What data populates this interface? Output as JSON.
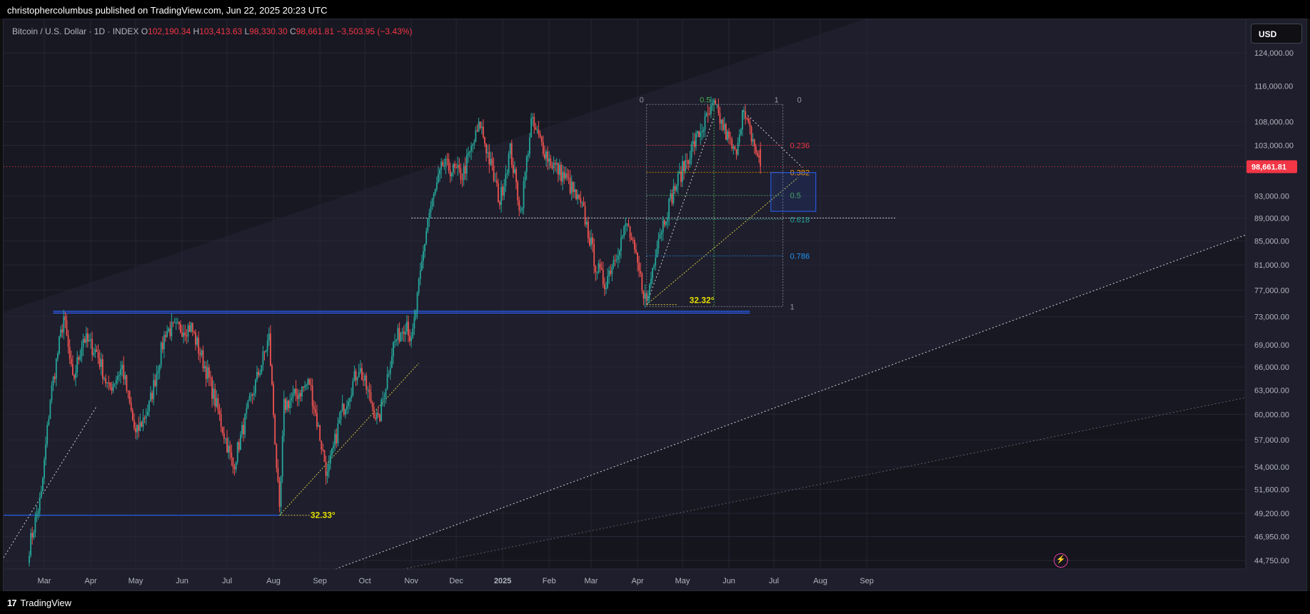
{
  "header": {
    "publisher_text": "christophercolumbus published on TradingView.com, Jun 22, 2025 20:23 UTC"
  },
  "legend": {
    "symbol": "Bitcoin / U.S. Dollar · 1D · INDEX",
    "open_label": "O",
    "open": "102,190.34",
    "high_label": "H",
    "high": "103,413.63",
    "low_label": "L",
    "low": "98,330.30",
    "close_label": "C",
    "close": "98,661.81",
    "change": "−3,503.95 (−3.43%)"
  },
  "currency_button": "USD",
  "last_price_label": "98,661.81",
  "angle_labels": [
    "32.33°",
    "32.32°"
  ],
  "footer": {
    "brand": "TradingView",
    "logo_icon": "tradingview-logo-icon"
  },
  "colors": {
    "up": "#26a69a",
    "down": "#ef5350",
    "background": "#1e1e2c",
    "blue_lines": "#2962ff",
    "fib_box": "#2962ff",
    "last_price": "#f23645"
  },
  "chart_data": {
    "type": "candlestick",
    "symbol": "Bitcoin / U.S. Dollar",
    "interval": "1D",
    "x_ticks": [
      "Mar",
      "Apr",
      "May",
      "Jun",
      "Jul",
      "Aug",
      "Sep",
      "Oct",
      "Nov",
      "Dec",
      "2025",
      "Feb",
      "Mar",
      "Apr",
      "May",
      "Jun",
      "Jul",
      "Aug",
      "Sep"
    ],
    "y_ticks": [
      "124,000.00",
      "116,000.00",
      "108,000.00",
      "103,000.00",
      "93,000.00",
      "89,000.00",
      "85,000.00",
      "81,000.00",
      "77,000.00",
      "73,000.00",
      "69,000.00",
      "66,000.00",
      "63,000.00",
      "60,000.00",
      "57,000.00",
      "54,000.00",
      "51,600.00",
      "49,200.00",
      "46,950.00",
      "44,750.00"
    ],
    "y_scale": "log",
    "ylim": [
      43500,
      130000
    ],
    "last_price": 98661.81,
    "price_path": [
      [
        "2024-02-20",
        46000
      ],
      [
        "2024-02-28",
        51000
      ],
      [
        "2024-03-05",
        62000
      ],
      [
        "2024-03-14",
        73000
      ],
      [
        "2024-03-20",
        64000
      ],
      [
        "2024-03-27",
        70000
      ],
      [
        "2024-04-05",
        68000
      ],
      [
        "2024-04-13",
        63000
      ],
      [
        "2024-04-22",
        66000
      ],
      [
        "2024-05-01",
        57500
      ],
      [
        "2024-05-10",
        61000
      ],
      [
        "2024-05-21",
        71000
      ],
      [
        "2024-06-07",
        71500
      ],
      [
        "2024-06-18",
        65000
      ],
      [
        "2024-06-24",
        61000
      ],
      [
        "2024-07-05",
        54000
      ],
      [
        "2024-07-14",
        60000
      ],
      [
        "2024-07-29",
        70000
      ],
      [
        "2024-08-05",
        49000
      ],
      [
        "2024-08-08",
        61000
      ],
      [
        "2024-08-25",
        64000
      ],
      [
        "2024-09-06",
        53000
      ],
      [
        "2024-09-15",
        60000
      ],
      [
        "2024-09-27",
        66000
      ],
      [
        "2024-10-10",
        59000
      ],
      [
        "2024-10-20",
        69000
      ],
      [
        "2024-10-29",
        72500
      ],
      [
        "2024-11-01",
        69000
      ],
      [
        "2024-11-12",
        89000
      ],
      [
        "2024-11-22",
        99000
      ],
      [
        "2024-12-05",
        97000
      ],
      [
        "2024-12-17",
        107500
      ],
      [
        "2024-12-30",
        92000
      ],
      [
        "2025-01-06",
        102000
      ],
      [
        "2025-01-13",
        90000
      ],
      [
        "2025-01-20",
        108000
      ],
      [
        "2025-02-01",
        100000
      ],
      [
        "2025-02-13",
        96000
      ],
      [
        "2025-02-24",
        90000
      ],
      [
        "2025-03-04",
        81000
      ],
      [
        "2025-03-10",
        78000
      ],
      [
        "2025-03-25",
        88000
      ],
      [
        "2025-04-07",
        75000
      ],
      [
        "2025-04-14",
        85000
      ],
      [
        "2025-04-25",
        94000
      ],
      [
        "2025-05-08",
        103000
      ],
      [
        "2025-05-22",
        111500
      ],
      [
        "2025-06-05",
        101000
      ],
      [
        "2025-06-10",
        110000
      ],
      [
        "2025-06-17",
        104000
      ],
      [
        "2025-06-22",
        98661.81
      ]
    ],
    "horizontal_levels": [
      {
        "price": 73800,
        "from": "2024-03-14",
        "to": "2025-06-15",
        "color": "blue"
      },
      {
        "price": 49000,
        "from": "2024-02-20",
        "to": "2024-08-05",
        "color": "blue"
      },
      {
        "price": 89000,
        "from": "2024-11-01",
        "to": "2025-09-20",
        "color": "white"
      }
    ],
    "fibonacci": {
      "high": 111800,
      "low": 74500,
      "levels": [
        {
          "ratio": "0.236",
          "color": "#f23645"
        },
        {
          "ratio": "0.382",
          "color": "#ff9800"
        },
        {
          "ratio": "0.5",
          "color": "#4caf50"
        },
        {
          "ratio": "0.618",
          "color": "#26a69a"
        },
        {
          "ratio": "0.786",
          "color": "#2196f3"
        },
        {
          "ratio": "1",
          "color": "#9598a1"
        }
      ],
      "top_labels": [
        "0",
        "0.5",
        "1",
        "0"
      ]
    },
    "annotations": [
      "32.33°",
      "32.32°"
    ]
  }
}
